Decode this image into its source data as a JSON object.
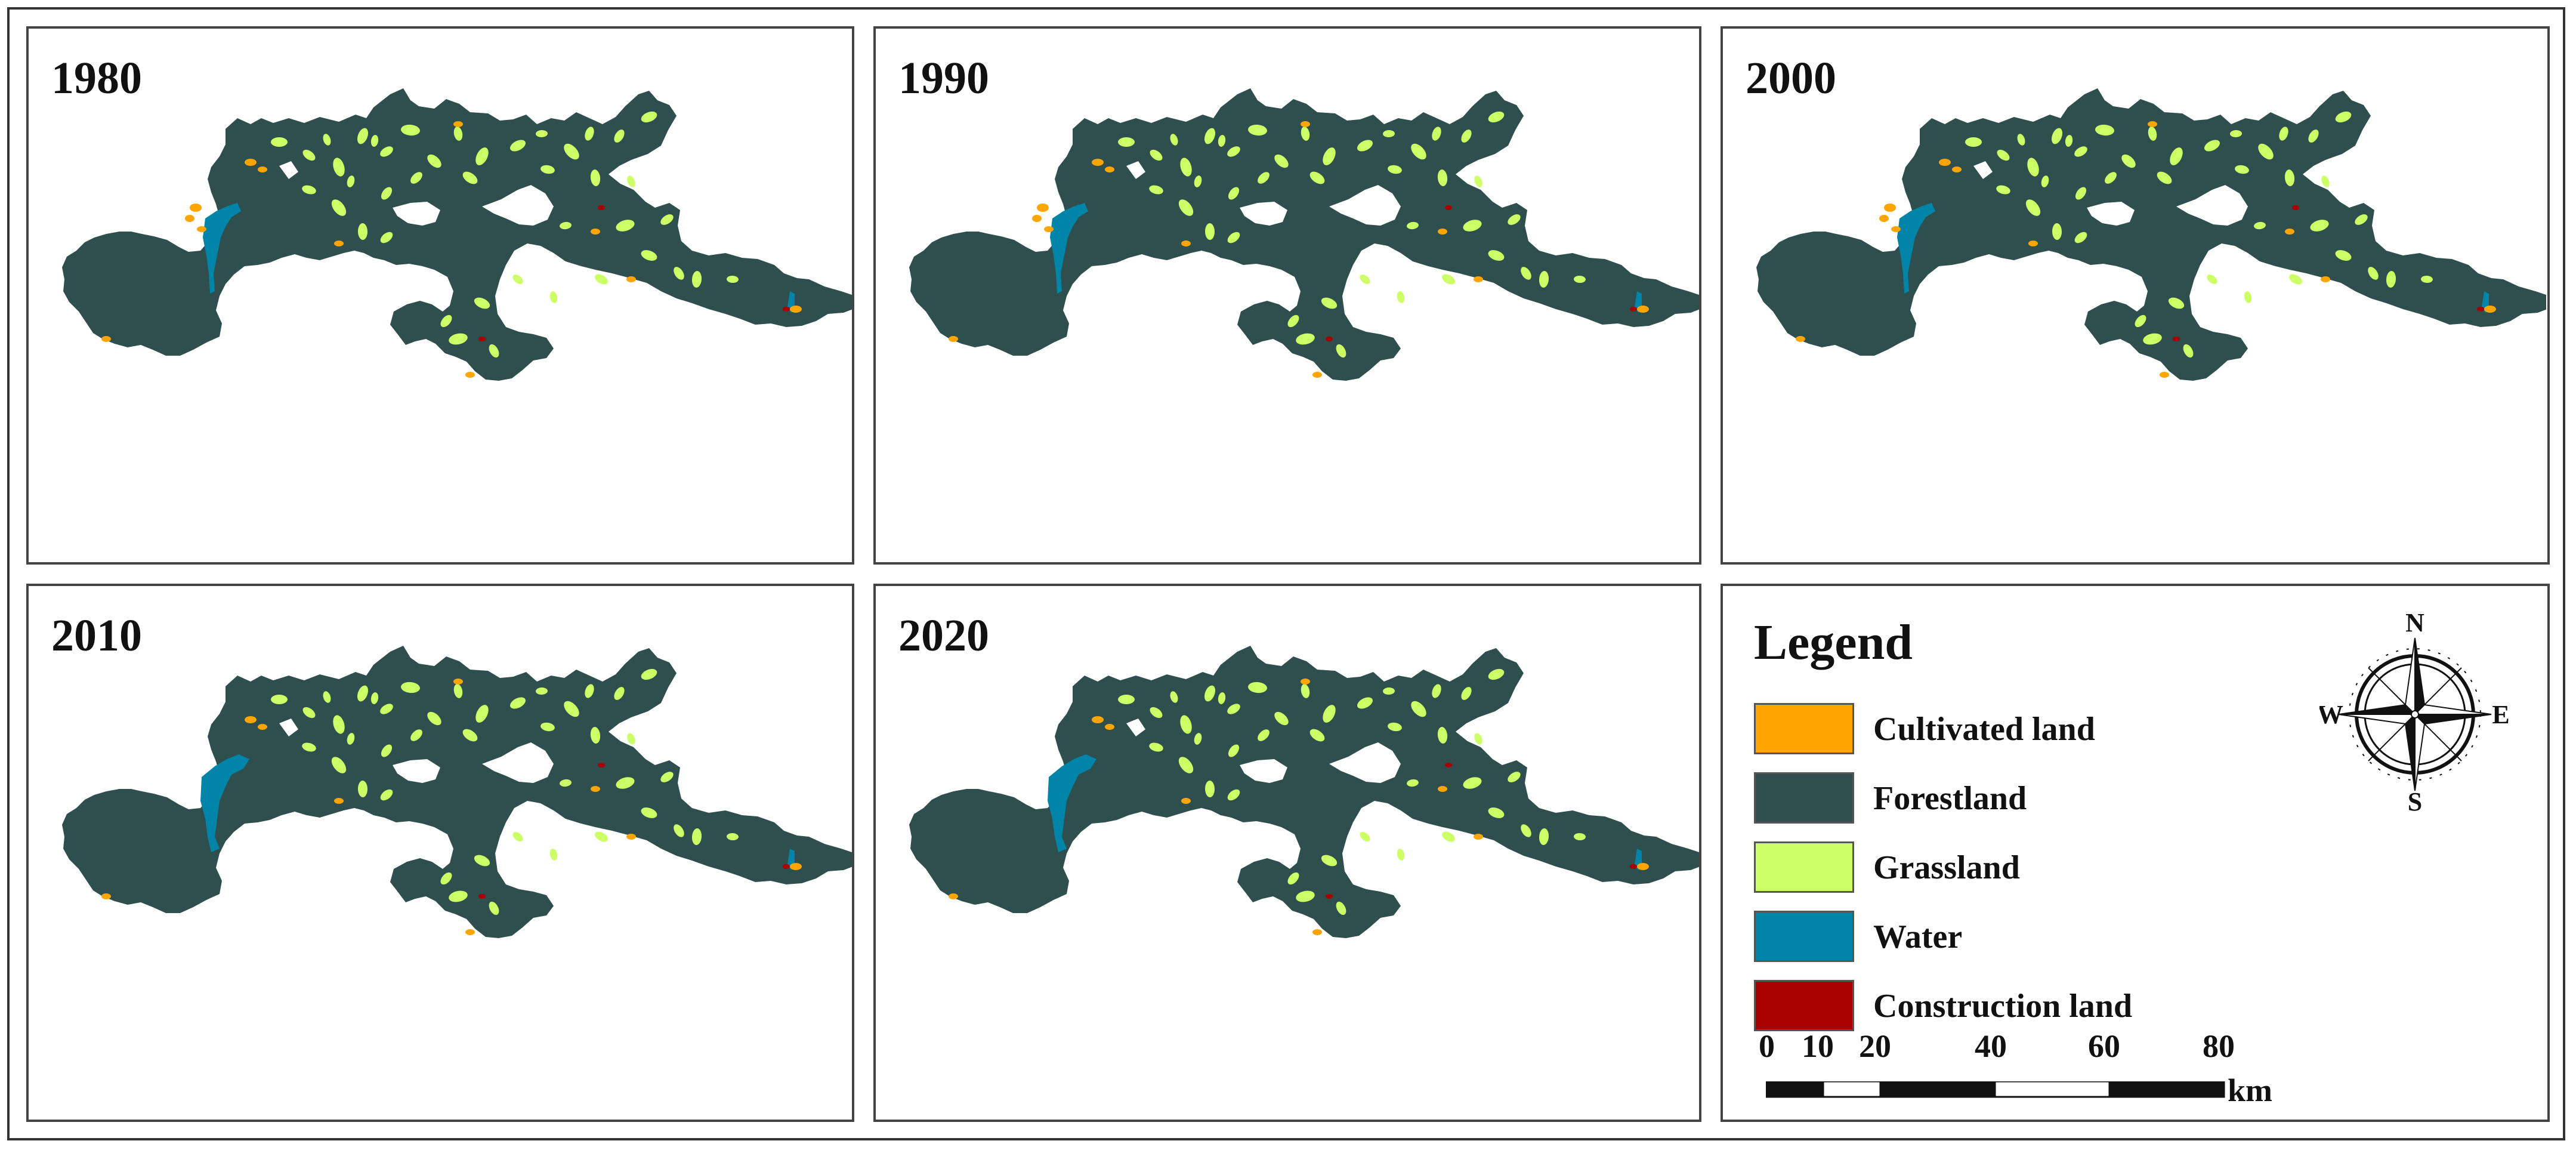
{
  "panels": [
    {
      "year": "1980"
    },
    {
      "year": "1990"
    },
    {
      "year": "2000"
    },
    {
      "year": "2010"
    },
    {
      "year": "2020"
    }
  ],
  "legend": {
    "title": "Legend",
    "items": [
      {
        "label": "Cultivated land",
        "color": "#FFA500"
      },
      {
        "label": "Forestland",
        "color": "#2F4F4F"
      },
      {
        "label": "Grassland",
        "color": "#CCFF66"
      },
      {
        "label": "Water",
        "color": "#0084A8"
      },
      {
        "label": "Construction land",
        "color": "#A80000"
      }
    ]
  },
  "compass": {
    "n": "N",
    "s": "S",
    "e": "E",
    "w": "W"
  },
  "scale_bar": {
    "ticks": [
      "0",
      "10",
      "20",
      "40",
      "60",
      "80"
    ],
    "unit": "km"
  },
  "colors": {
    "forest": "#2F4F4F",
    "grass": "#CCFF66",
    "cultivated": "#FFA500",
    "water": "#0084A8",
    "construction": "#A80000"
  }
}
